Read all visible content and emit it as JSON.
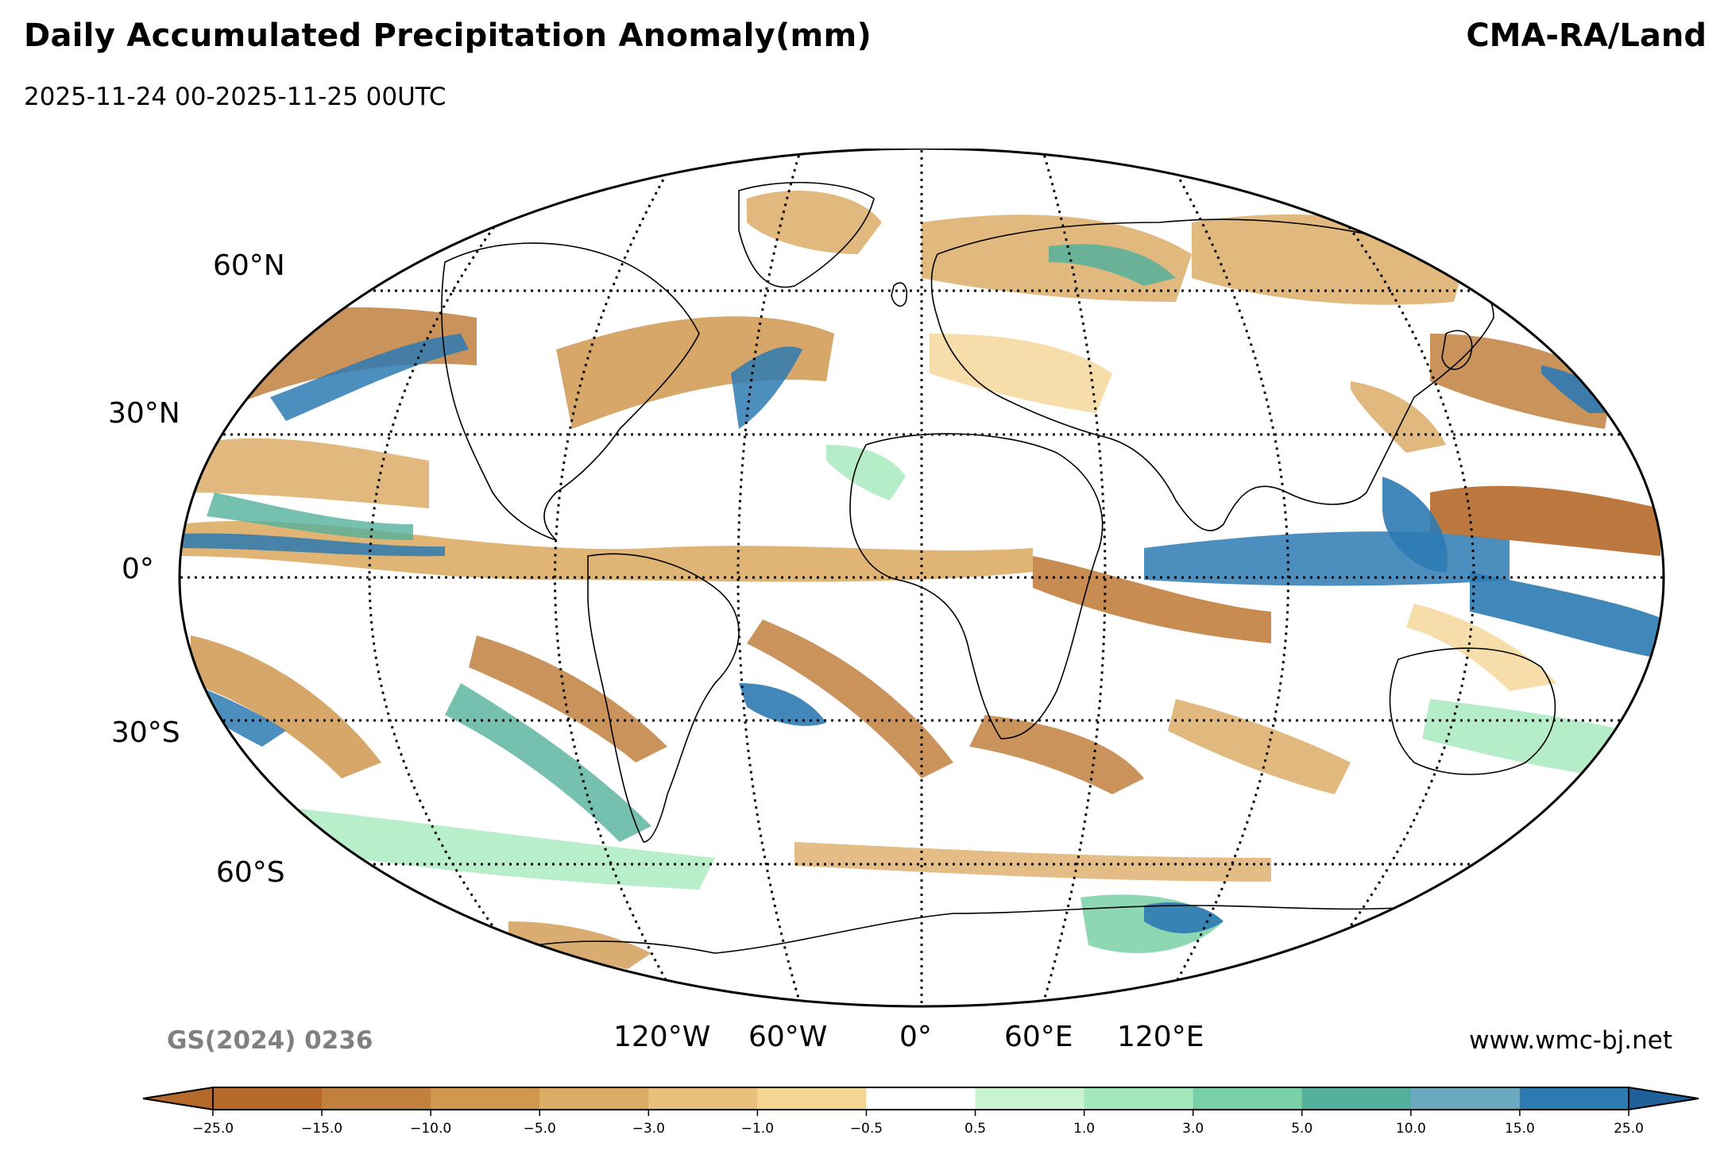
{
  "header": {
    "title": "Daily Accumulated Precipitation Anomaly(mm)",
    "subtitle": "2025-11-24 00-2025-11-25 00UTC",
    "source": "CMA-RA/Land"
  },
  "footer": {
    "approval_code": "GS(2024) 0236",
    "website": "www.wmc-bj.net"
  },
  "map": {
    "projection": "Robinson",
    "lat_labels": [
      "60°N",
      "30°N",
      "0°",
      "30°S",
      "60°S"
    ],
    "lon_labels": [
      "120°W",
      "60°W",
      "0°",
      "60°E",
      "120°E"
    ],
    "gridline_style": "dotted",
    "ocean_color": "#ffffff",
    "coastline_color": "#000000"
  },
  "colorbar": {
    "extend": "both",
    "tick_labels": [
      "−25.0",
      "−15.0",
      "−10.0",
      "−5.0",
      "−3.0",
      "−1.0",
      "−0.5",
      "0.5",
      "1.0",
      "3.0",
      "5.0",
      "10.0",
      "15.0",
      "25.0"
    ],
    "colors": [
      "#b5692a",
      "#c2803f",
      "#d0974f",
      "#dcac66",
      "#e8c07c",
      "#f5d594",
      "#ffffff",
      "#c8f4d0",
      "#a2e8ba",
      "#7ad0a6",
      "#54b09c",
      "#6aa9c0",
      "#2d7ab3"
    ],
    "under_color": "#b5692a",
    "over_color": "#1f5f9a"
  }
}
